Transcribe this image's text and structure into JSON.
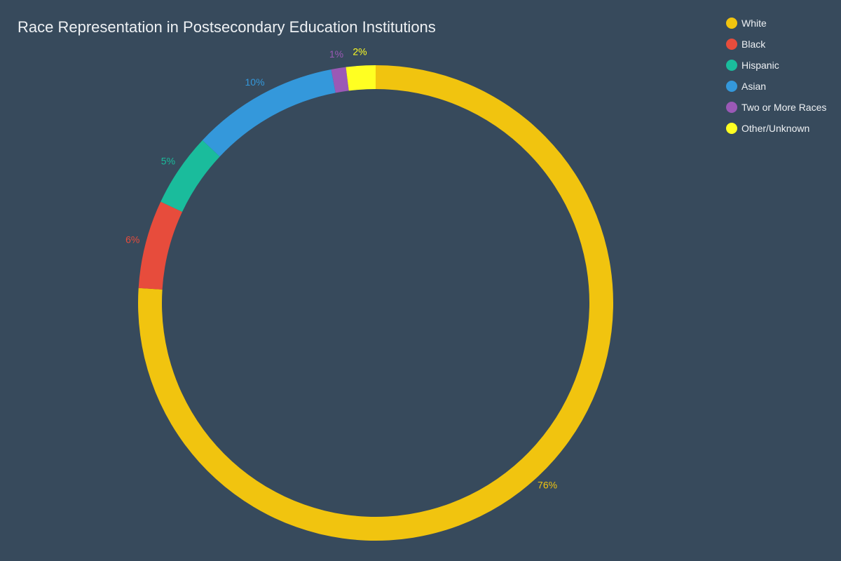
{
  "chart_data": {
    "type": "pie",
    "variant": "donut",
    "title": "Race Representation in Postsecondary Education Institutions",
    "categories": [
      "White",
      "Black",
      "Hispanic",
      "Asian",
      "Two or More Races",
      "Other/Unknown"
    ],
    "values": [
      76,
      6,
      5,
      10,
      1,
      2
    ],
    "labels": [
      "76%",
      "6%",
      "5%",
      "10%",
      "1%",
      "2%"
    ],
    "colors": [
      "#f1c40f",
      "#e74c3c",
      "#1abc9c",
      "#3498db",
      "#9b59b6",
      "#ffff22"
    ],
    "legend_position": "top-right",
    "background": "#374a5c",
    "text_color": "#eef1f4"
  }
}
